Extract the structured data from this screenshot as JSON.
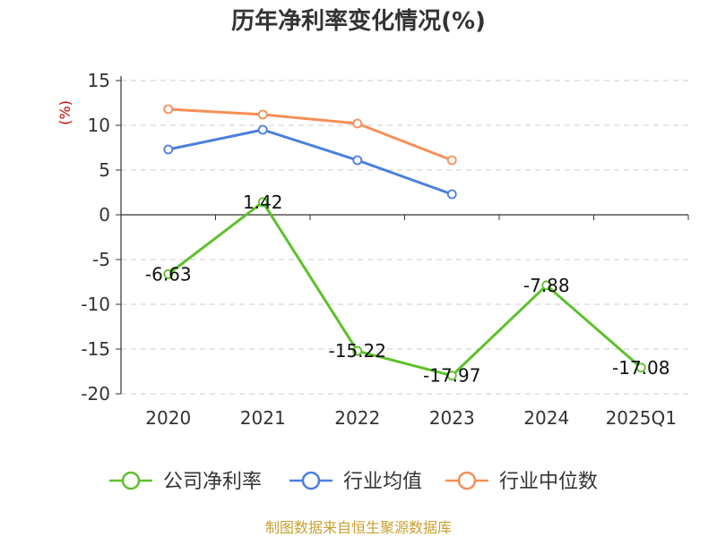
{
  "chart_data": {
    "type": "line",
    "title": "历年净利率变化情况(%)",
    "ylabel": "(%)",
    "categories": [
      "2020",
      "2021",
      "2022",
      "2023",
      "2024",
      "2025Q1"
    ],
    "ylim": [
      -20,
      15
    ],
    "yticks": [
      15,
      10,
      5,
      0,
      -5,
      -10,
      -15,
      -20
    ],
    "grid": true,
    "legend_position": "bottom",
    "series": [
      {
        "name": "公司净利率",
        "color": "#5dc12a",
        "values": [
          -6.63,
          1.42,
          -15.22,
          -17.97,
          -7.88,
          -17.08
        ],
        "labels": [
          "-6.63",
          "1.42",
          "-15.22",
          "-17.97",
          "-7.88",
          "-17.08"
        ]
      },
      {
        "name": "行业均值",
        "color": "#4a7fdc",
        "values": [
          7.3,
          9.5,
          6.1,
          2.3,
          null,
          null
        ]
      },
      {
        "name": "行业中位数",
        "color": "#f58f56",
        "values": [
          11.8,
          11.2,
          10.2,
          6.1,
          null,
          null
        ]
      }
    ]
  },
  "source": "制图数据来自恒生聚源数据库"
}
